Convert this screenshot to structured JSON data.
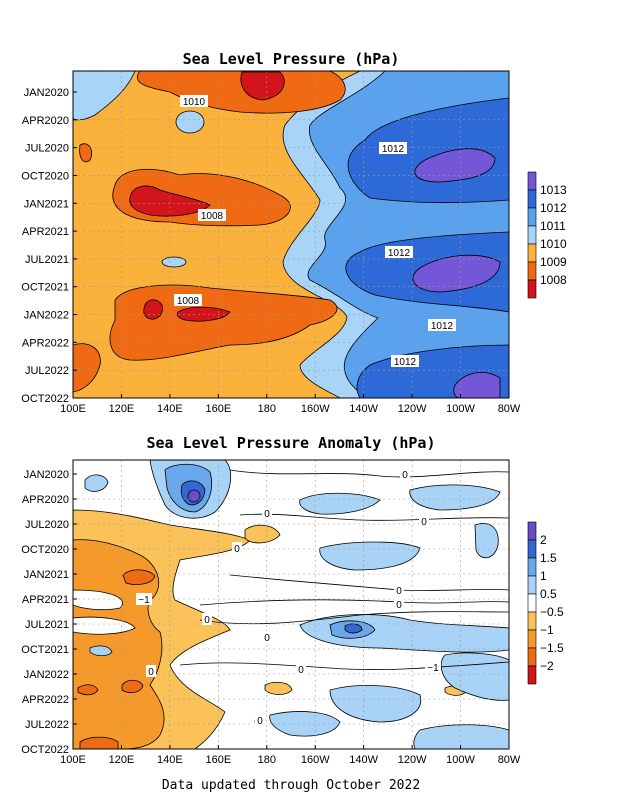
{
  "footer": "Data updated through October 2022",
  "chart_data": [
    {
      "type": "heatmap",
      "title": "Sea Level Pressure (hPa)",
      "x_ticks": [
        "100E",
        "120E",
        "140E",
        "160E",
        "180",
        "160W",
        "140W",
        "120W",
        "100W",
        "80W"
      ],
      "y_ticks": [
        "JAN2020",
        "APR2020",
        "JUL2020",
        "OCT2020",
        "JAN2021",
        "APR2021",
        "JUL2021",
        "OCT2021",
        "JAN2022",
        "APR2022",
        "JUL2022",
        "OCT2022"
      ],
      "colorbar_labels": [
        "1013",
        "1012",
        "1011",
        "1010",
        "1009",
        "1008"
      ],
      "colors": {
        "lt_1008": "#d2141b",
        "1008_1009": "#f06a14",
        "1009_1010": "#fbb23c",
        "1010_1011": "#a7d4f7",
        "1011_1012": "#5aa2ee",
        "1012_1013": "#2d6ad7",
        "gt_1013": "#7357d6"
      },
      "contour_labels": [
        "1010",
        "1012",
        "1008",
        "1012",
        "1008",
        "1012",
        "1012"
      ]
    },
    {
      "type": "heatmap",
      "title": "Sea Level Pressure Anomaly (hPa)",
      "x_ticks": [
        "100E",
        "120E",
        "140E",
        "160E",
        "180",
        "160W",
        "140W",
        "120W",
        "100W",
        "80W"
      ],
      "y_ticks": [
        "JAN2020",
        "APR2020",
        "JUL2020",
        "OCT2020",
        "JAN2021",
        "APR2021",
        "JUL2021",
        "OCT2021",
        "JAN2022",
        "APR2022",
        "JUL2022",
        "OCT2022"
      ],
      "colorbar_labels": [
        "2",
        "1.5",
        "1",
        "0.5",
        "−0.5",
        "−1",
        "−1.5",
        "−2"
      ],
      "colors": {
        "gt_2": "#6b4cc8",
        "1.5_2": "#3368d3",
        "1_1.5": "#6aa8ec",
        "0.5_1": "#a8d3f6",
        "neutral": "#ffffff",
        "m1_m0.5": "#fbc25a",
        "m1.5_m1": "#f59a2a",
        "m2_m1.5": "#ee6b13",
        "lt_m2": "#d2141b"
      },
      "contour_labels": [
        "0",
        "0",
        "0",
        "0",
        "0",
        "0",
        "−1",
        "0",
        "0",
        "0",
        "0",
        "−1",
        "0",
        "0"
      ]
    }
  ]
}
